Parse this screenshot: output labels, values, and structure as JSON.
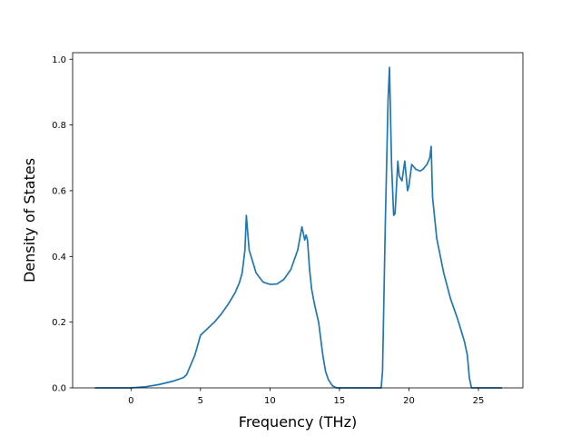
{
  "chart_data": {
    "type": "line",
    "title": "",
    "xlabel": "Frequency (THz)",
    "ylabel": "Density of States",
    "xlim": [
      -4.2,
      28.2
    ],
    "ylim": [
      0,
      1.02
    ],
    "xticks": [
      0,
      5,
      10,
      15,
      20,
      25
    ],
    "xtick_labels": [
      "0",
      "5",
      "10",
      "15",
      "20",
      "25"
    ],
    "yticks": [
      0.0,
      0.2,
      0.4,
      0.6,
      0.8,
      1.0
    ],
    "ytick_labels": [
      "0.0",
      "0.2",
      "0.4",
      "0.6",
      "0.8",
      "1.0"
    ],
    "grid": false,
    "legend": "none",
    "line_color": "#1f77b4",
    "series": [
      {
        "x": [
          -2.6,
          0.0,
          1.0,
          2.0,
          3.0,
          3.5,
          3.8,
          4.0,
          4.3,
          4.6,
          4.8,
          5.0,
          5.5,
          6.0,
          6.5,
          7.0,
          7.5,
          7.8,
          8.0,
          8.2,
          8.3,
          8.5,
          9.0,
          9.5,
          10.0,
          10.5,
          11.0,
          11.5,
          12.0,
          12.3,
          12.5,
          12.6,
          12.7,
          12.85,
          13.0,
          13.2,
          13.5,
          13.8,
          14.0,
          14.2,
          14.5,
          14.8,
          15.0,
          16.0,
          17.0,
          18.0,
          18.1,
          18.3,
          18.5,
          18.6,
          18.75,
          18.9,
          19.0,
          19.2,
          19.3,
          19.5,
          19.7,
          19.9,
          20.0,
          20.2,
          20.5,
          20.8,
          21.0,
          21.3,
          21.5,
          21.6,
          21.7,
          22.0,
          22.5,
          23.0,
          23.5,
          24.0,
          24.2,
          24.35,
          24.5,
          26.7
        ],
        "y": [
          0.0,
          0.0,
          0.003,
          0.01,
          0.02,
          0.027,
          0.032,
          0.04,
          0.07,
          0.1,
          0.13,
          0.16,
          0.18,
          0.2,
          0.225,
          0.255,
          0.29,
          0.32,
          0.35,
          0.42,
          0.525,
          0.42,
          0.35,
          0.322,
          0.315,
          0.316,
          0.33,
          0.36,
          0.42,
          0.49,
          0.45,
          0.465,
          0.45,
          0.36,
          0.3,
          0.255,
          0.2,
          0.1,
          0.05,
          0.025,
          0.006,
          0.0,
          0.0,
          0.0,
          0.0,
          0.0,
          0.05,
          0.5,
          0.88,
          0.975,
          0.68,
          0.525,
          0.53,
          0.69,
          0.645,
          0.63,
          0.69,
          0.6,
          0.615,
          0.68,
          0.665,
          0.66,
          0.665,
          0.68,
          0.7,
          0.735,
          0.58,
          0.455,
          0.35,
          0.27,
          0.21,
          0.14,
          0.1,
          0.03,
          0.0,
          0.0
        ]
      }
    ]
  }
}
